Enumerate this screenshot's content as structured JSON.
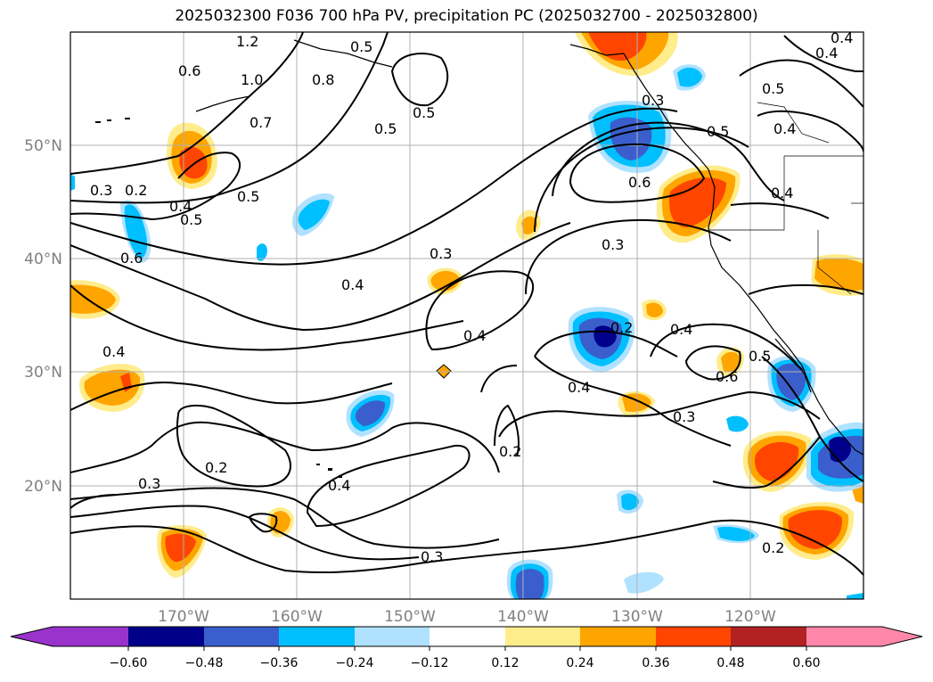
{
  "title": "2025032300 F036 700 hPa PV, precipitation PC (2025032700 - 2025032800)",
  "map": {
    "lat_labels": [
      "50°N",
      "40°N",
      "30°N",
      "20°N"
    ],
    "lon_labels": [
      "170°W",
      "160°W",
      "150°W",
      "140°W",
      "130°W",
      "120°W"
    ],
    "grid_color": "#b0b0b0",
    "contour_color": "#000000",
    "contour_labels": [
      "1.2",
      "0.5",
      "0.6",
      "1.0",
      "0.8",
      "0.7",
      "0.5",
      "0.5",
      "0.3",
      "0.2",
      "0.4",
      "0.5",
      "0.5",
      "0.6",
      "0.4",
      "0.3",
      "0.4",
      "0.4",
      "0.3",
      "0.4",
      "0.2",
      "0.3",
      "0.2",
      "0.4",
      "0.4",
      "0.6",
      "0.4",
      "0.3",
      "0.5",
      "0.5",
      "0.4",
      "0.6",
      "0.4",
      "0.5",
      "0.4",
      "0.3",
      "0.2",
      "0.2",
      "0.3"
    ]
  },
  "colorbar": {
    "ticks": [
      "−0.60",
      "−0.48",
      "−0.36",
      "−0.24",
      "−0.12",
      "0.12",
      "0.24",
      "0.36",
      "0.48",
      "0.60"
    ],
    "colors": [
      "#9933cc",
      "#00008b",
      "#3a5fcd",
      "#00bfff",
      "#b0e2ff",
      "#ffffff",
      "#ffec8b",
      "#ffa500",
      "#ff4500",
      "#b22222",
      "#ff88aa"
    ]
  }
}
